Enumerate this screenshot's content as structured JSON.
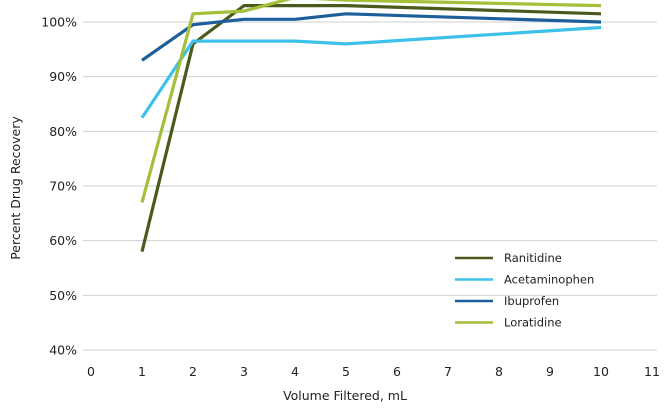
{
  "chart_data": {
    "type": "line",
    "title": "",
    "xlabel": "Volume Filtered, mL",
    "ylabel": "Percent Drug Recovery",
    "xlim": [
      0,
      11
    ],
    "ylim": [
      40,
      105
    ],
    "x_ticks": [
      0,
      1,
      2,
      3,
      4,
      5,
      6,
      7,
      8,
      9,
      10,
      11
    ],
    "y_ticks": [
      40,
      50,
      60,
      70,
      80,
      90,
      100
    ],
    "y_tick_labels": [
      "40%",
      "50%",
      "60%",
      "70%",
      "80%",
      "90%",
      "100%"
    ],
    "x_tick_labels": [
      "0",
      "1",
      "2",
      "3",
      "4",
      "5",
      "6",
      "7",
      "8",
      "9",
      "10",
      "11"
    ],
    "grid": "horizontal",
    "legend_position": "bottom-right",
    "series": [
      {
        "name": "Ranitidine",
        "color": "#4a5a1c",
        "x": [
          1,
          2,
          3,
          5,
          10
        ],
        "y": [
          58,
          96,
          103,
          103,
          101.5
        ]
      },
      {
        "name": "Acetaminophen",
        "color": "#3cc1ea",
        "x": [
          1,
          2,
          3,
          4,
          5,
          10
        ],
        "y": [
          82.5,
          96.5,
          96.5,
          96.5,
          96,
          99
        ]
      },
      {
        "name": "Ibuprofen",
        "color": "#1d5f9a",
        "x": [
          1,
          2,
          3,
          4,
          5,
          10
        ],
        "y": [
          93,
          99.5,
          100.5,
          100.5,
          101.5,
          100
        ]
      },
      {
        "name": "Loratidine",
        "color": "#a4bf3a",
        "x": [
          1,
          2,
          3,
          4,
          5,
          10
        ],
        "y": [
          67,
          101.5,
          102,
          104.5,
          104,
          103
        ]
      }
    ]
  }
}
